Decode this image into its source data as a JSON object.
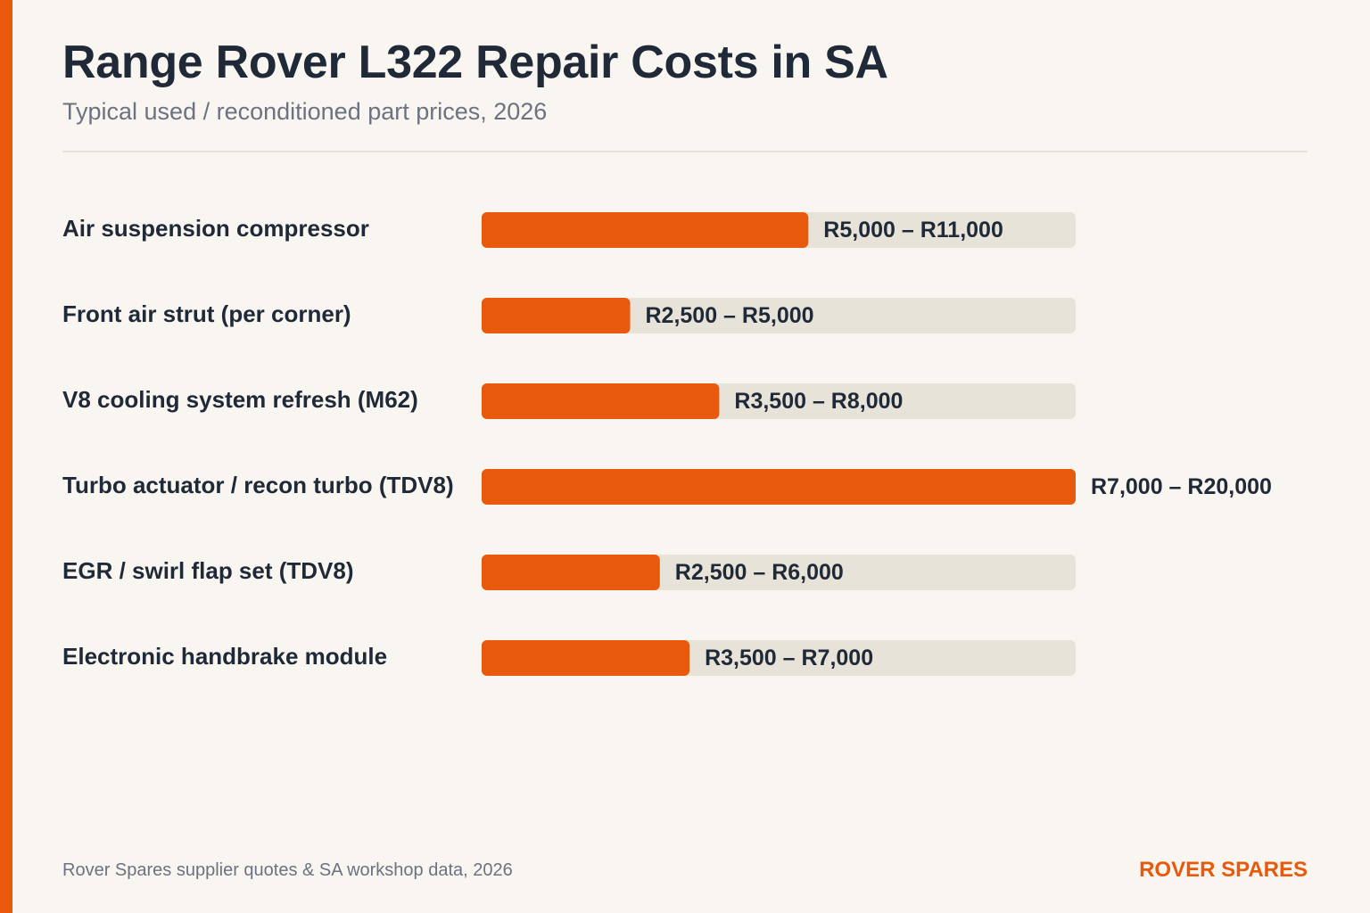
{
  "header": {
    "title": "Range Rover L322 Repair Costs in SA",
    "subtitle": "Typical used / reconditioned part prices, 2026"
  },
  "colors": {
    "accent": "#e8590c",
    "track": "#e8e3d8",
    "text": "#1f2937",
    "muted": "#6b7280",
    "background": "#f9f6f1"
  },
  "chart_data": {
    "type": "bar",
    "orientation": "horizontal",
    "title": "Range Rover L322 Repair Costs in SA",
    "subtitle": "Typical used / reconditioned part prices, 2026",
    "categories": [
      "Air suspension compressor",
      "Front air strut (per corner)",
      "V8 cooling system refresh (M62)",
      "Turbo actuator / recon turbo (TDV8)",
      "EGR / swirl flap set (TDV8)",
      "Electronic handbrake module"
    ],
    "series": [
      {
        "values": [
          11000,
          5000,
          8000,
          20000,
          6000,
          7000
        ]
      }
    ],
    "range_labels": [
      "R5,000 – R11,000",
      "R2,500 – R5,000",
      "R3,500 – R8,000",
      "R7,000 – R20,000",
      "R2,500 – R6,000",
      "R3,500 – R7,000"
    ],
    "xlim": [
      0,
      20000
    ],
    "grid": false,
    "legend": "none"
  },
  "footer": {
    "source": "Rover Spares supplier quotes & SA workshop data, 2026",
    "brand": "ROVER SPARES"
  }
}
